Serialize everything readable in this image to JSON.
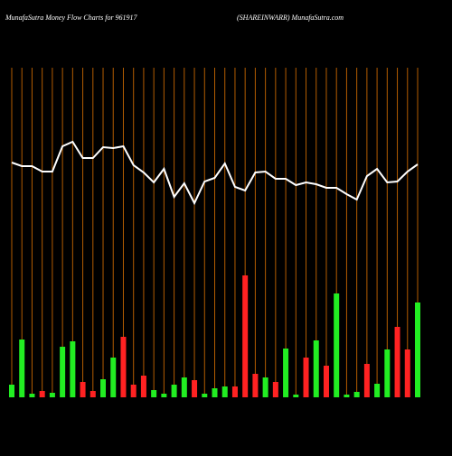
{
  "chart_data": {
    "type": "money-flow",
    "title": "MunafaSutra  Money Flow  Charts for 961917",
    "subtitle": "(SHAREINWARR) MunafaSutra.com",
    "grid": true,
    "grid_color": "#b35c00",
    "line_color": "#ffffff",
    "background": "#000000",
    "ylim": [
      0,
      370
    ],
    "line_values": [
      260,
      256,
      256,
      250,
      250,
      278,
      283,
      265,
      265,
      277,
      276,
      278,
      257,
      249,
      238,
      253,
      222,
      237,
      215,
      239,
      243,
      259,
      233,
      229,
      249,
      250,
      242,
      242,
      235,
      238,
      236,
      232,
      232,
      225,
      219,
      245,
      253,
      238,
      239,
      250,
      258
    ],
    "values": [
      14,
      64,
      4,
      7,
      5,
      56,
      62,
      17,
      7,
      20,
      44,
      67,
      14,
      24,
      8,
      4,
      14,
      22,
      19,
      4,
      10,
      12,
      12,
      135,
      26,
      22,
      17,
      54,
      3,
      44,
      63,
      35,
      115,
      3,
      6,
      37,
      15,
      53,
      78,
      53,
      105
    ],
    "colors": [
      "#22ee22",
      "#22ee22",
      "#22ee22",
      "#ff2222",
      "#22ee22",
      "#22ee22",
      "#22ee22",
      "#ff2222",
      "#ff2222",
      "#22ee22",
      "#22ee22",
      "#ff2222",
      "#ff2222",
      "#ff2222",
      "#22ee22",
      "#22ee22",
      "#22ee22",
      "#22ee22",
      "#ff2222",
      "#22ee22",
      "#22ee22",
      "#22ee22",
      "#ff2222",
      "#ff2222",
      "#ff2222",
      "#22ee22",
      "#ff2222",
      "#22ee22",
      "#22ee22",
      "#ff2222",
      "#22ee22",
      "#ff2222",
      "#22ee22",
      "#22ee22",
      "#22ee22",
      "#ff2222",
      "#22ee22",
      "#22ee22",
      "#ff2222",
      "#ff2222",
      "#22ee22"
    ]
  }
}
